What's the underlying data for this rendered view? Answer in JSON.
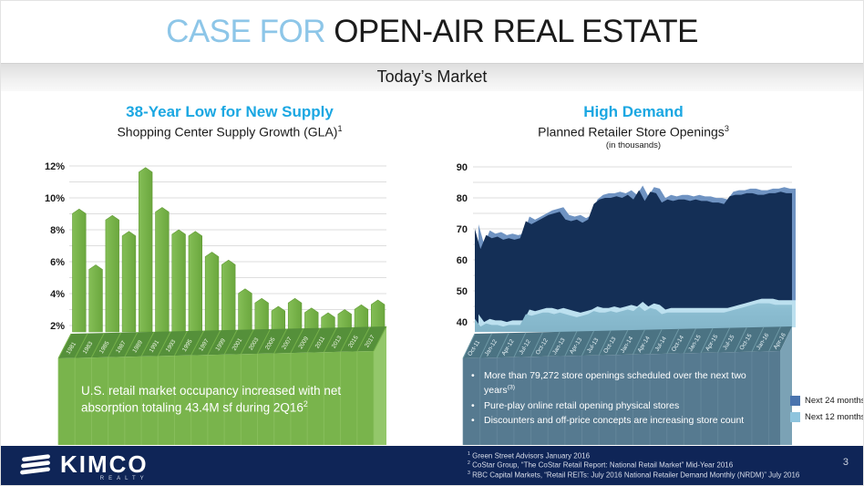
{
  "slide": {
    "title_accent": "CASE FOR",
    "title_rest": " OPEN-AIR REAL ESTATE",
    "section_band": "Today’s Market",
    "accent_color": "#8dc6e8",
    "heading_color": "#1ba7e2"
  },
  "left_chart": {
    "heading": "38-Year Low for New Supply",
    "subtitle": "Shopping Center Supply Growth (GLA)",
    "subtitle_sup": "1",
    "callout_text": "U.S. retail market occupancy increased with net absorption totaling 43.4M sf during 2Q16",
    "callout_sup": "2"
  },
  "right_chart": {
    "heading": "High Demand",
    "subtitle": "Planned Retailer Store Openings",
    "subtitle_sup": "3",
    "subtitle_note": "(in thousands)",
    "bullets": [
      {
        "text": "More than 79,272 store openings scheduled over the next two years",
        "sup": "(3)"
      },
      {
        "text": "Pure-play online retail opening physical stores",
        "sup": ""
      },
      {
        "text": "Discounters and off-price concepts are increasing store count",
        "sup": ""
      }
    ],
    "legend": [
      {
        "label": "Next 24 months",
        "color": "#4a74ae"
      },
      {
        "label": "Next 12 months",
        "color": "#8ec4dd"
      }
    ]
  },
  "footer": {
    "logo_text": "KIMCO",
    "logo_subtext": "REALTY",
    "footnotes": [
      {
        "sup": "1",
        "text": "Green Street Advisors January 2016"
      },
      {
        "sup": "2",
        "text": "CoStar Group, “The CoStar Retail Report: National Retail Market” Mid-Year 2016"
      },
      {
        "sup": "3",
        "text": "RBC Capital Markets, “Retail REITs: July 2016 National Retailer Demand Monthly (NRDM)” July 2016"
      }
    ],
    "page_number": "3"
  },
  "chart_data": [
    {
      "type": "bar",
      "title": "Shopping Center Supply Growth (GLA)",
      "unit": "%",
      "ylim": [
        0,
        12
      ],
      "yticks": [
        2,
        4,
        6,
        8,
        10,
        12
      ],
      "grid": true,
      "bar_color": "#77b245",
      "categories": [
        "1981",
        "1983",
        "1985",
        "1987",
        "1989",
        "1991",
        "1993",
        "1995",
        "1997",
        "1999",
        "2001",
        "2003",
        "2005",
        "2007",
        "2009",
        "2011",
        "2013",
        "2015",
        "2017"
      ],
      "values": [
        9.3,
        5.8,
        8.9,
        7.9,
        11.9,
        9.4,
        8.0,
        7.9,
        6.6,
        6.1,
        4.3,
        3.7,
        3.2,
        3.7,
        3.1,
        2.8,
        3.0,
        3.3,
        3.6
      ]
    },
    {
      "type": "area",
      "title": "Planned Retailer Store Openings (in thousands)",
      "ylim": [
        40,
        90
      ],
      "yticks": [
        40,
        50,
        60,
        70,
        80,
        90
      ],
      "grid": true,
      "legend_position": "right",
      "x_labels": [
        "Oct-11",
        "Jan-12",
        "Apr-12",
        "Jul-12",
        "Oct-12",
        "Jan-13",
        "Apr-13",
        "Jul-13",
        "Oct-13",
        "Jan-14",
        "Apr-14",
        "Jul-14",
        "Oct-14",
        "Jan-15",
        "Apr-15",
        "Jul-15",
        "Oct-15",
        "Jan-16",
        "Apr-16"
      ],
      "label_every": 3,
      "series": [
        {
          "name": "Next 24 months",
          "color": "#44699f",
          "values": [
            70,
            63.5,
            68,
            67,
            67.5,
            66.5,
            67,
            66.5,
            67,
            72.5,
            71.5,
            72.5,
            73.5,
            74.5,
            75,
            75.5,
            73,
            72.5,
            73,
            72,
            73,
            78,
            79.5,
            80,
            80,
            80.5,
            80,
            81,
            79.5,
            82.5,
            79,
            82,
            81.5,
            78.5,
            79.5,
            79,
            79.5,
            79.5,
            79,
            79.5,
            79,
            79,
            78.5,
            78.5,
            78,
            80.5,
            81,
            81,
            81.5,
            81.5,
            81,
            81,
            81.5,
            81.5,
            82,
            81.5,
            81.5
          ]
        },
        {
          "name": "Next 12 months",
          "color": "#86b9cc",
          "values": [
            41,
            38.5,
            39.5,
            39,
            39,
            38.5,
            39,
            39,
            39,
            42.5,
            42,
            42.5,
            43,
            43,
            42.5,
            43,
            42.5,
            42,
            41.5,
            42,
            42.5,
            43.5,
            43,
            43,
            43.5,
            43,
            43.5,
            44,
            43.5,
            45,
            43.5,
            44.5,
            44,
            42.5,
            43,
            43,
            43,
            43,
            43,
            43,
            43,
            43,
            43,
            43,
            43,
            43.5,
            44,
            44.5,
            45,
            45.5,
            46,
            46,
            46,
            45.5,
            45.5,
            45.5,
            45.5
          ]
        }
      ]
    }
  ]
}
